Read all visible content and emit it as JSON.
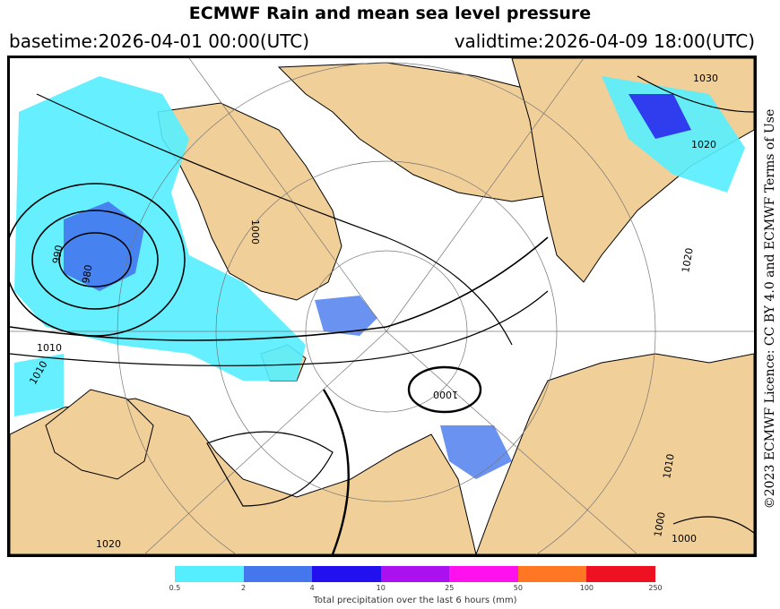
{
  "header": {
    "title": "ECMWF Rain and mean sea level pressure",
    "basetime": "basetime:2026-04-01 00:00(UTC)",
    "validtime": "validtime:2026-04-09 18:00(UTC)"
  },
  "license": "©2023 ECMWF Licence: CC BY 4.0 and ECMWF Terms of Use",
  "map": {
    "isobar_labels": [
      "1030",
      "1020",
      "1000",
      "990",
      "980",
      "1010",
      "1010",
      "1000",
      "1000",
      "1020",
      "1010",
      "1020",
      "1000"
    ],
    "colors": {
      "land": "#f1cf98",
      "ocean": "#ffffff"
    }
  },
  "legend": {
    "caption": "Total precipitation over the last 6 hours (mm)",
    "ticks": [
      "0.5",
      "2",
      "4",
      "10",
      "25",
      "50",
      "100",
      "250"
    ],
    "colors": [
      "#55eeff",
      "#4477ee",
      "#2211ee",
      "#aa11ee",
      "#ff11ee",
      "#ff7722",
      "#ee1122"
    ]
  }
}
